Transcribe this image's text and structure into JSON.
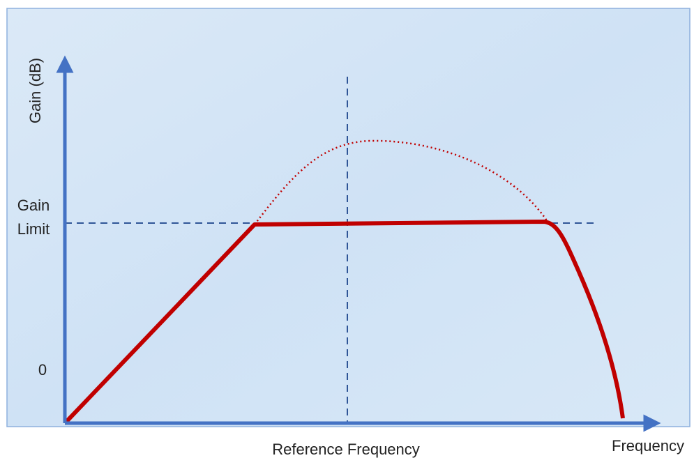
{
  "axes": {
    "y_label": "Gain (dB)",
    "x_label": "Frequency"
  },
  "markers": {
    "gain_limit": [
      "Gain",
      "Limit"
    ],
    "zero": "0",
    "reference_frequency": "Reference Frequency"
  }
}
